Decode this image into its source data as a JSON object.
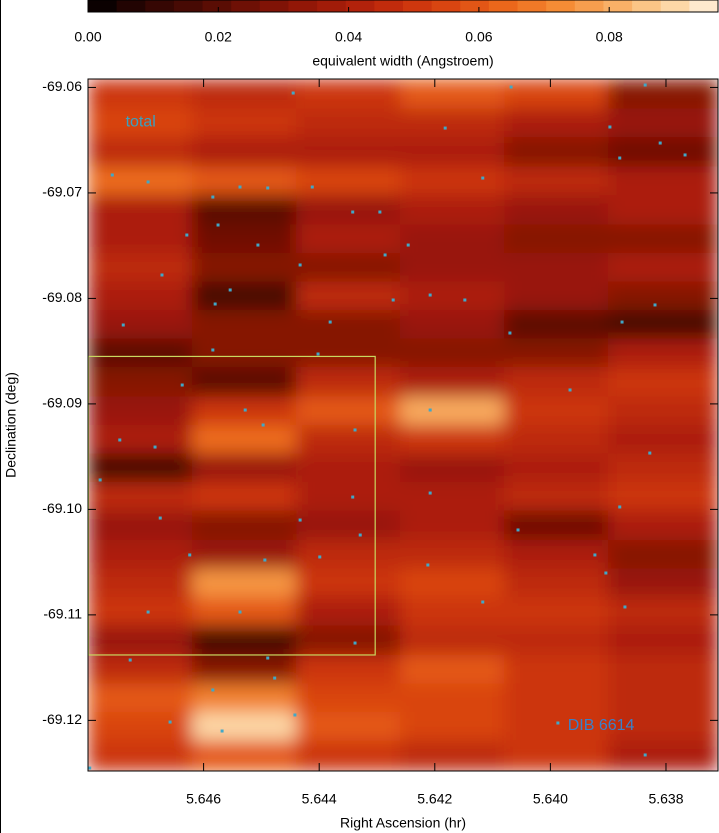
{
  "chart_data": {
    "type": "heatmap",
    "xlabel": "Right Ascension (hr)",
    "ylabel": "Declination (deg)",
    "xlim": [
      5.648,
      5.6371
    ],
    "ylim": [
      -69.1248,
      -69.0592
    ],
    "xticks": [
      5.646,
      5.644,
      5.642,
      {
        "value": 5.64,
        "label": "5.640"
      },
      5.638
    ],
    "yticks": [
      -69.06,
      -69.07,
      -69.08,
      -69.09,
      {
        "value": -69.1,
        "label": "-69.10"
      },
      -69.11,
      -69.12
    ],
    "colorbar": {
      "label": "equivalent width (Angstroem)",
      "clim": [
        0,
        0.0967
      ],
      "ticks": [
        {
          "value": 0,
          "label": "0.00"
        },
        0.02,
        0.04,
        0.06,
        0.08
      ],
      "colormap": [
        "#000000",
        "#2a0502",
        "#4a0a04",
        "#6e1005",
        "#8f1607",
        "#ad1f0a",
        "#c8300d",
        "#dd4a12",
        "#ec6a1c",
        "#f58c35",
        "#f9ad62",
        "#fcd29a",
        "#fff2e0"
      ]
    },
    "heatmap": {
      "xedges": [
        5.648,
        5.6462,
        5.6444,
        5.6426,
        5.6408,
        5.639,
        5.6371
      ],
      "yedges": [
        -69.0592,
        -69.062,
        -69.0647,
        -69.0675,
        -69.0702,
        -69.073,
        -69.0757,
        -69.0784,
        -69.0811,
        -69.0838,
        -69.0865,
        -69.0893,
        -69.092,
        -69.0947,
        -69.0974,
        -69.1001,
        -69.1029,
        -69.1056,
        -69.1083,
        -69.111,
        -69.1138,
        -69.1165,
        -69.1192,
        -69.1219,
        -69.1248
      ],
      "z": [
        [
          0.05,
          0.045,
          0.05,
          0.06,
          0.055,
          0.03
        ],
        [
          0.055,
          0.05,
          0.045,
          0.045,
          0.04,
          0.035
        ],
        [
          0.045,
          0.04,
          0.04,
          0.04,
          0.03,
          0.025
        ],
        [
          0.065,
          0.06,
          0.055,
          0.05,
          0.045,
          0.04
        ],
        [
          0.04,
          0.02,
          0.035,
          0.04,
          0.035,
          0.04
        ],
        [
          0.04,
          0.025,
          0.04,
          0.035,
          0.03,
          0.03
        ],
        [
          0.045,
          0.03,
          0.03,
          0.035,
          0.035,
          0.04
        ],
        [
          0.04,
          0.015,
          0.045,
          0.04,
          0.035,
          0.03
        ],
        [
          0.035,
          0.03,
          0.03,
          0.035,
          0.02,
          0.015
        ],
        [
          0.02,
          0.03,
          0.03,
          0.03,
          0.03,
          0.04
        ],
        [
          0.03,
          0.02,
          0.045,
          0.04,
          0.045,
          0.05
        ],
        [
          0.035,
          0.05,
          0.06,
          0.08,
          0.05,
          0.045
        ],
        [
          0.04,
          0.065,
          0.045,
          0.05,
          0.045,
          0.04
        ],
        [
          0.015,
          0.035,
          0.04,
          0.035,
          0.04,
          0.045
        ],
        [
          0.045,
          0.05,
          0.04,
          0.04,
          0.045,
          0.05
        ],
        [
          0.035,
          0.03,
          0.035,
          0.04,
          0.025,
          0.04
        ],
        [
          0.04,
          0.035,
          0.045,
          0.045,
          0.04,
          0.03
        ],
        [
          0.045,
          0.075,
          0.05,
          0.055,
          0.045,
          0.035
        ],
        [
          0.05,
          0.06,
          0.04,
          0.05,
          0.05,
          0.045
        ],
        [
          0.035,
          0.015,
          0.03,
          0.045,
          0.045,
          0.04
        ],
        [
          0.045,
          0.03,
          0.05,
          0.06,
          0.05,
          0.045
        ],
        [
          0.06,
          0.07,
          0.055,
          0.055,
          0.05,
          0.045
        ],
        [
          0.055,
          0.09,
          0.06,
          0.055,
          0.05,
          0.045
        ],
        [
          0.05,
          0.06,
          0.05,
          0.045,
          0.05,
          0.04
        ]
      ]
    },
    "points": {
      "color": "#40a8c8",
      "x": [
        5.64445,
        5.64068,
        5.63836,
        5.64182,
        5.63897,
        5.6381,
        5.63767,
        5.6388,
        5.64117,
        5.64758,
        5.64696,
        5.64537,
        5.64489,
        5.64412,
        5.64342,
        5.64295,
        5.64584,
        5.64575,
        5.64629,
        5.64506,
        5.64433,
        5.64246,
        5.64286,
        5.64672,
        5.64554,
        5.64272,
        5.64208,
        5.6458,
        5.64148,
        5.63819,
        5.64739,
        5.64381,
        5.6407,
        5.63876,
        5.64584,
        5.64402,
        5.64637,
        5.64528,
        5.64497,
        5.64338,
        5.63966,
        5.64208,
        5.64745,
        5.64684,
        5.63828,
        5.64779,
        5.64342,
        5.64208,
        5.6388,
        5.64433,
        5.64675,
        5.64329,
        5.64056,
        5.64624,
        5.64494,
        5.64399,
        5.64212,
        5.63923,
        5.63904,
        5.64696,
        5.64537,
        5.64117,
        5.63871,
        5.64338,
        5.64489,
        5.64727,
        5.64584,
        5.64477,
        5.64442,
        5.64658,
        5.64568,
        5.63987,
        5.63836,
        5.64797
      ],
      "y": [
        -69.06053,
        -69.05996,
        -69.05977,
        -69.06385,
        -69.06375,
        -69.06527,
        -69.0664,
        -69.06669,
        -69.06859,
        -69.0683,
        -69.06896,
        -69.06944,
        -69.06953,
        -69.06944,
        -69.07181,
        -69.07181,
        -69.07039,
        -69.07304,
        -69.07399,
        -69.07494,
        -69.07683,
        -69.07494,
        -69.07588,
        -69.07778,
        -69.0792,
        -69.08015,
        -69.07968,
        -69.08053,
        -69.08015,
        -69.08062,
        -69.08252,
        -69.08224,
        -69.08328,
        -69.08224,
        -69.08489,
        -69.08527,
        -69.08821,
        -69.09058,
        -69.092,
        -69.09247,
        -69.08868,
        -69.09058,
        -69.09342,
        -69.09409,
        -69.09466,
        -69.09721,
        -69.09883,
        -69.09845,
        -69.09977,
        -69.10101,
        -69.10082,
        -69.10243,
        -69.10195,
        -69.10432,
        -69.1048,
        -69.10451,
        -69.10527,
        -69.10432,
        -69.10603,
        -69.10973,
        -69.10973,
        -69.10878,
        -69.10925,
        -69.11267,
        -69.11409,
        -69.11428,
        -69.11712,
        -69.11599,
        -69.11949,
        -69.12016,
        -69.12101,
        -69.12025,
        -69.12328,
        -69.12452
      ]
    },
    "region": {
      "xlim": [
        5.648,
        5.64304
      ],
      "ylim": [
        -69.0855,
        -69.1138
      ],
      "color": "#c8d860"
    },
    "annotations": [
      {
        "text": "total",
        "x": 5.64735,
        "y": -69.0633,
        "color": "#3aa0c0"
      },
      {
        "text": "DIB 6614",
        "x": 5.6397,
        "y": -69.1205,
        "color": "#3a80c8"
      }
    ]
  }
}
